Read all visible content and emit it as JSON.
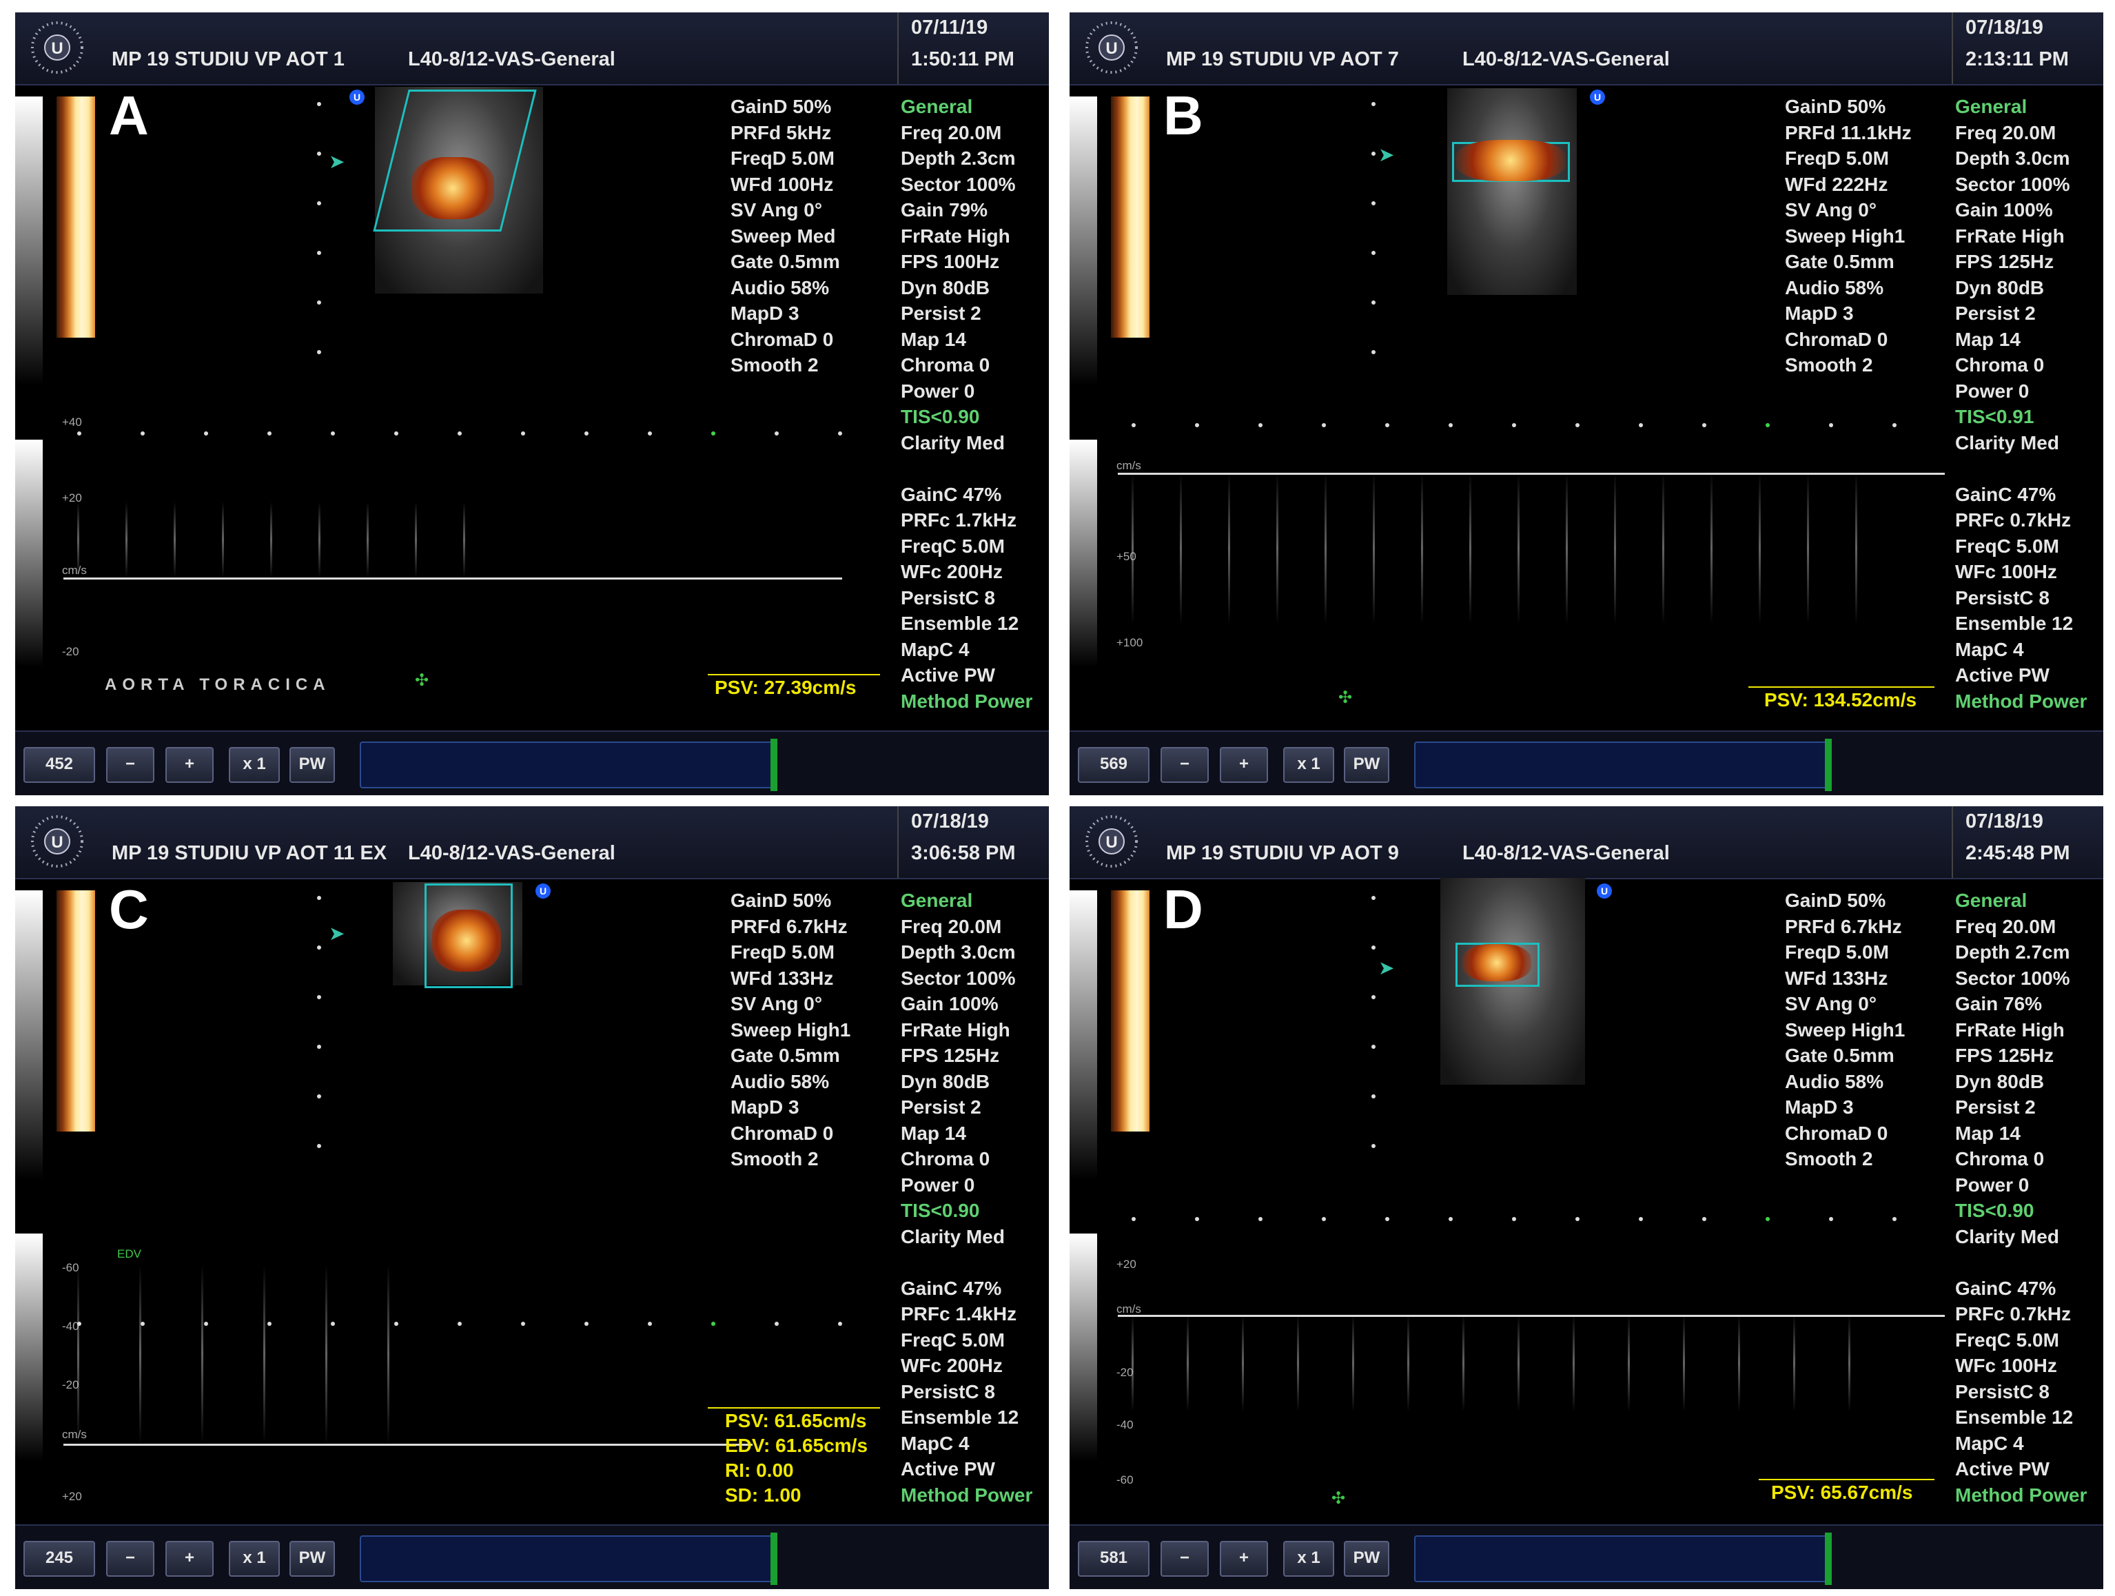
{
  "panels": [
    {
      "letter": "A",
      "header": {
        "title": "MP 19 STUDIU VP AOT 1",
        "probe": "L40-8/12-VAS-General",
        "date": "07/11/19",
        "time": "1:50:11 PM"
      },
      "left_params": [
        "GainD 50%",
        "PRFd 5kHz",
        "FreqD 5.0M",
        "WFd 100Hz",
        "SV Ang 0°",
        "Sweep Med",
        "Gate 0.5mm",
        "Audio 58%",
        "MapD 3",
        "ChromaD 0",
        "Smooth 2"
      ],
      "right_params": [
        "General",
        "Freq 20.0M",
        "Depth 2.3cm",
        "Sector 100%",
        "Gain 79%",
        "FrRate High",
        "FPS 100Hz",
        "Dyn 80dB",
        "Persist 2",
        "Map 14",
        "Chroma 0",
        "Power 0",
        "TIS<0.90",
        "Clarity Med",
        "",
        "GainC 47%",
        "PRFc 1.7kHz",
        "FreqC 5.0M",
        "WFc 200Hz",
        "PersistC 8",
        "Ensemble 12",
        "MapC 4",
        "Active PW",
        "Method Power"
      ],
      "scale_labels": [
        "+40",
        "+20",
        "cm/s",
        "-20"
      ],
      "measurements": [
        "PSV: 27.39cm/s"
      ],
      "caption": "AORTA TORACICA",
      "footer": {
        "count": "452",
        "minus": "−",
        "plus": "+",
        "zoom": "x 1",
        "mode": "PW"
      }
    },
    {
      "letter": "B",
      "header": {
        "title": "MP 19 STUDIU VP AOT 7",
        "probe": "L40-8/12-VAS-General",
        "date": "07/18/19",
        "time": "2:13:11 PM"
      },
      "left_params": [
        "GainD 50%",
        "PRFd 11.1kHz",
        "FreqD 5.0M",
        "WFd 222Hz",
        "SV Ang 0°",
        "Sweep High1",
        "Gate 0.5mm",
        "Audio 58%",
        "MapD 3",
        "ChromaD 0",
        "Smooth 2"
      ],
      "right_params": [
        "General",
        "Freq 20.0M",
        "Depth 3.0cm",
        "Sector 100%",
        "Gain 100%",
        "FrRate High",
        "FPS 125Hz",
        "Dyn 80dB",
        "Persist 2",
        "Map 14",
        "Chroma 0",
        "Power 0",
        "TIS<0.91",
        "Clarity Med",
        "",
        "GainC 47%",
        "PRFc 0.7kHz",
        "FreqC 5.0M",
        "WFc 100Hz",
        "PersistC 8",
        "Ensemble 12",
        "MapC 4",
        "Active PW",
        "Method Power"
      ],
      "scale_labels": [
        "cm/s",
        "+50",
        "+100"
      ],
      "measurements": [
        "PSV: 134.52cm/s"
      ],
      "caption": "",
      "footer": {
        "count": "569",
        "minus": "−",
        "plus": "+",
        "zoom": "x 1",
        "mode": "PW"
      }
    },
    {
      "letter": "C",
      "header": {
        "title": "MP 19 STUDIU VP AOT 11 EX",
        "probe": "L40-8/12-VAS-General",
        "date": "07/18/19",
        "time": "3:06:58 PM"
      },
      "left_params": [
        "GainD 50%",
        "PRFd 6.7kHz",
        "FreqD 5.0M",
        "WFd 133Hz",
        "SV Ang 0°",
        "Sweep High1",
        "Gate 0.5mm",
        "Audio 58%",
        "MapD 3",
        "ChromaD 0",
        "Smooth 2"
      ],
      "right_params": [
        "General",
        "Freq 20.0M",
        "Depth 3.0cm",
        "Sector 100%",
        "Gain 100%",
        "FrRate High",
        "FPS 125Hz",
        "Dyn 80dB",
        "Persist 2",
        "Map 14",
        "Chroma 0",
        "Power 0",
        "TIS<0.90",
        "Clarity Med",
        "",
        "GainC 47%",
        "PRFc 1.4kHz",
        "FreqC 5.0M",
        "WFc 200Hz",
        "PersistC 8",
        "Ensemble 12",
        "MapC 4",
        "Active PW",
        "Method Power"
      ],
      "scale_labels": [
        "-60",
        "-40",
        "-20",
        "cm/s",
        "+20"
      ],
      "measurements": [
        "PSV: 61.65cm/s",
        "EDV: 61.65cm/s",
        "RI: 0.00",
        "SD: 1.00"
      ],
      "marker": "EDV",
      "caption": "",
      "footer": {
        "count": "245",
        "minus": "−",
        "plus": "+",
        "zoom": "x 1",
        "mode": "PW"
      }
    },
    {
      "letter": "D",
      "header": {
        "title": "MP 19 STUDIU VP AOT 9",
        "probe": "L40-8/12-VAS-General",
        "date": "07/18/19",
        "time": "2:45:48 PM"
      },
      "left_params": [
        "GainD 50%",
        "PRFd 6.7kHz",
        "FreqD 5.0M",
        "WFd 133Hz",
        "SV Ang 0°",
        "Sweep High1",
        "Gate 0.5mm",
        "Audio 58%",
        "MapD 3",
        "ChromaD 0",
        "Smooth 2"
      ],
      "right_params": [
        "General",
        "Freq 20.0M",
        "Depth 2.7cm",
        "Sector 100%",
        "Gain 76%",
        "FrRate High",
        "FPS 125Hz",
        "Dyn 80dB",
        "Persist 2",
        "Map 14",
        "Chroma 0",
        "Power 0",
        "TIS<0.90",
        "Clarity Med",
        "",
        "GainC 47%",
        "PRFc 0.7kHz",
        "FreqC 5.0M",
        "WFc 100Hz",
        "PersistC 8",
        "Ensemble 12",
        "MapC 4",
        "Active PW",
        "Method Power"
      ],
      "scale_labels": [
        "+20",
        "cm/s",
        "-20",
        "-40",
        "-60"
      ],
      "measurements": [
        "PSV: 65.67cm/s"
      ],
      "caption": "",
      "footer": {
        "count": "581",
        "minus": "−",
        "plus": "+",
        "zoom": "x 1",
        "mode": "PW"
      }
    }
  ],
  "colors": {
    "measurement": "#f0e800",
    "highlight_green": "#5fd070",
    "roi": "#1dbfbf"
  }
}
